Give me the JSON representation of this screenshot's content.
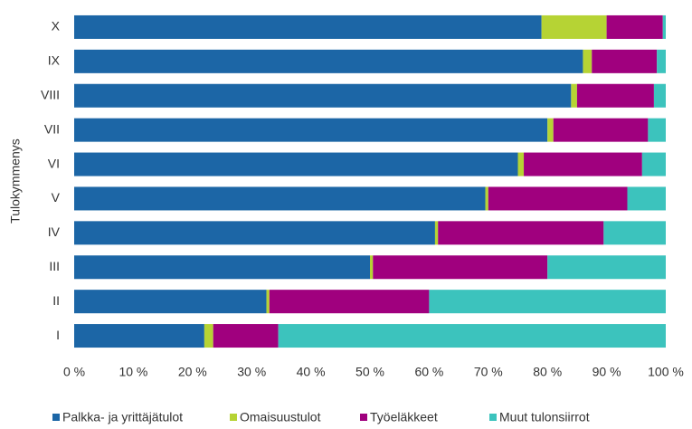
{
  "chart_data": {
    "type": "stacked_barh",
    "y_label": "Tulokymmenys",
    "categories": [
      "X",
      "IX",
      "VIII",
      "VII",
      "VI",
      "V",
      "IV",
      "III",
      "II",
      "I"
    ],
    "series": [
      {
        "name": "Palkka- ja yrittäjätulot",
        "color": "#1c66a6",
        "values": [
          79,
          86,
          84,
          80,
          75,
          69.5,
          61,
          50,
          32.5,
          22
        ]
      },
      {
        "name": "Omaisuustulot",
        "color": "#b6d334",
        "values": [
          11,
          1.5,
          1,
          1,
          1,
          0.5,
          0.5,
          0.5,
          0.5,
          1.5
        ]
      },
      {
        "name": "Työeläkkeet",
        "color": "#a0007e",
        "values": [
          9.5,
          11,
          13,
          16,
          20,
          23.5,
          28,
          29.5,
          27,
          11
        ]
      },
      {
        "name": "Muut tulonsiirrot",
        "color": "#3cc3bd",
        "values": [
          0.5,
          1.5,
          2,
          3,
          4,
          6.5,
          10.5,
          20,
          40,
          65.5
        ]
      }
    ],
    "xlim": [
      0,
      100
    ],
    "xticks": [
      {
        "value": 0,
        "label": "0 %"
      },
      {
        "value": 10,
        "label": "10 %"
      },
      {
        "value": 20,
        "label": "20 %"
      },
      {
        "value": 30,
        "label": "30 %"
      },
      {
        "value": 40,
        "label": "40 %"
      },
      {
        "value": 50,
        "label": "50 %"
      },
      {
        "value": 60,
        "label": "60 %"
      },
      {
        "value": 70,
        "label": "70 %"
      },
      {
        "value": 80,
        "label": "80 %"
      },
      {
        "value": 90,
        "label": "90 %"
      },
      {
        "value": 100,
        "label": "100 %"
      }
    ],
    "grid": false,
    "legend": "bottom"
  }
}
